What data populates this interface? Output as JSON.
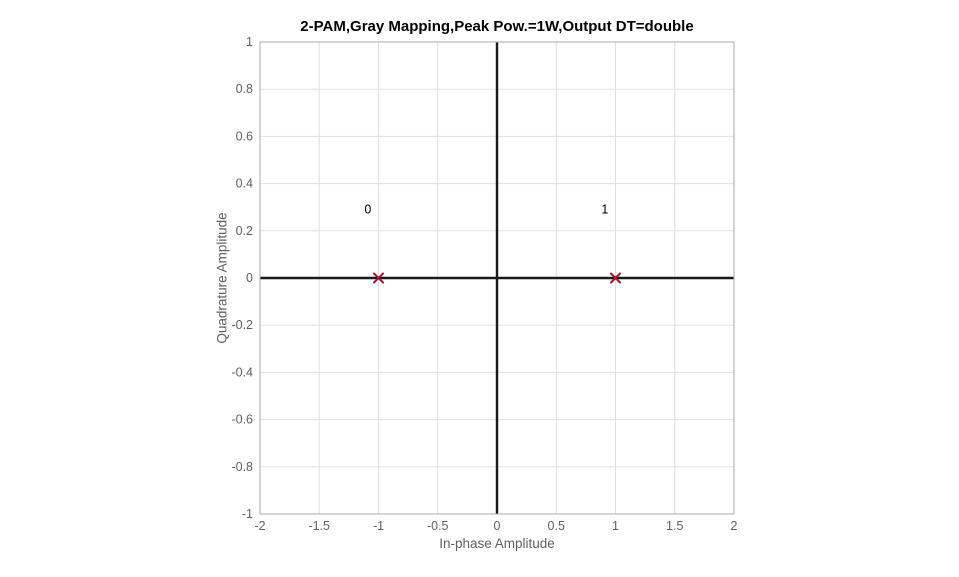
{
  "figure": {
    "background": "#ffffff"
  },
  "chart_data": {
    "type": "scatter",
    "title": "2-PAM,Gray Mapping,Peak Pow.=1W,Output DT=double",
    "xlabel": "In-phase Amplitude",
    "ylabel": "Quadrature Amplitude",
    "xlim": [
      -2,
      2
    ],
    "ylim": [
      -1,
      1
    ],
    "xtick_values": [
      -2,
      -1.5,
      -1,
      -0.5,
      0,
      0.5,
      1,
      1.5,
      2
    ],
    "xtick_labels": [
      "-2",
      "-1.5",
      "-1",
      "-0.5",
      "0",
      "0.5",
      "1",
      "1.5",
      "2"
    ],
    "ytick_values": [
      -1,
      -0.8,
      -0.6,
      -0.4,
      -0.2,
      0,
      0.2,
      0.4,
      0.6,
      0.8,
      1
    ],
    "ytick_labels": [
      "-1",
      "-0.8",
      "-0.6",
      "-0.4",
      "-0.2",
      "0",
      "0.2",
      "0.4",
      "0.6",
      "0.8",
      "1"
    ],
    "grid": true,
    "zero_lines": true,
    "legend": "none",
    "series": [
      {
        "name": "constellation-points",
        "marker": "x",
        "color": "#a2142f",
        "points": [
          {
            "x": -1,
            "y": 0
          },
          {
            "x": 1,
            "y": 0
          }
        ]
      }
    ],
    "annotations": [
      {
        "text": "0",
        "x": -1.09,
        "y": 0.29
      },
      {
        "text": "1",
        "x": 0.91,
        "y": 0.29
      }
    ],
    "colors": {
      "grid": "#e0e0e0",
      "axis_box": "#ababab",
      "zero_line": "#1a1a1a",
      "tick_label": "#616161",
      "axis_label": "#616161",
      "title": "#000000"
    }
  }
}
